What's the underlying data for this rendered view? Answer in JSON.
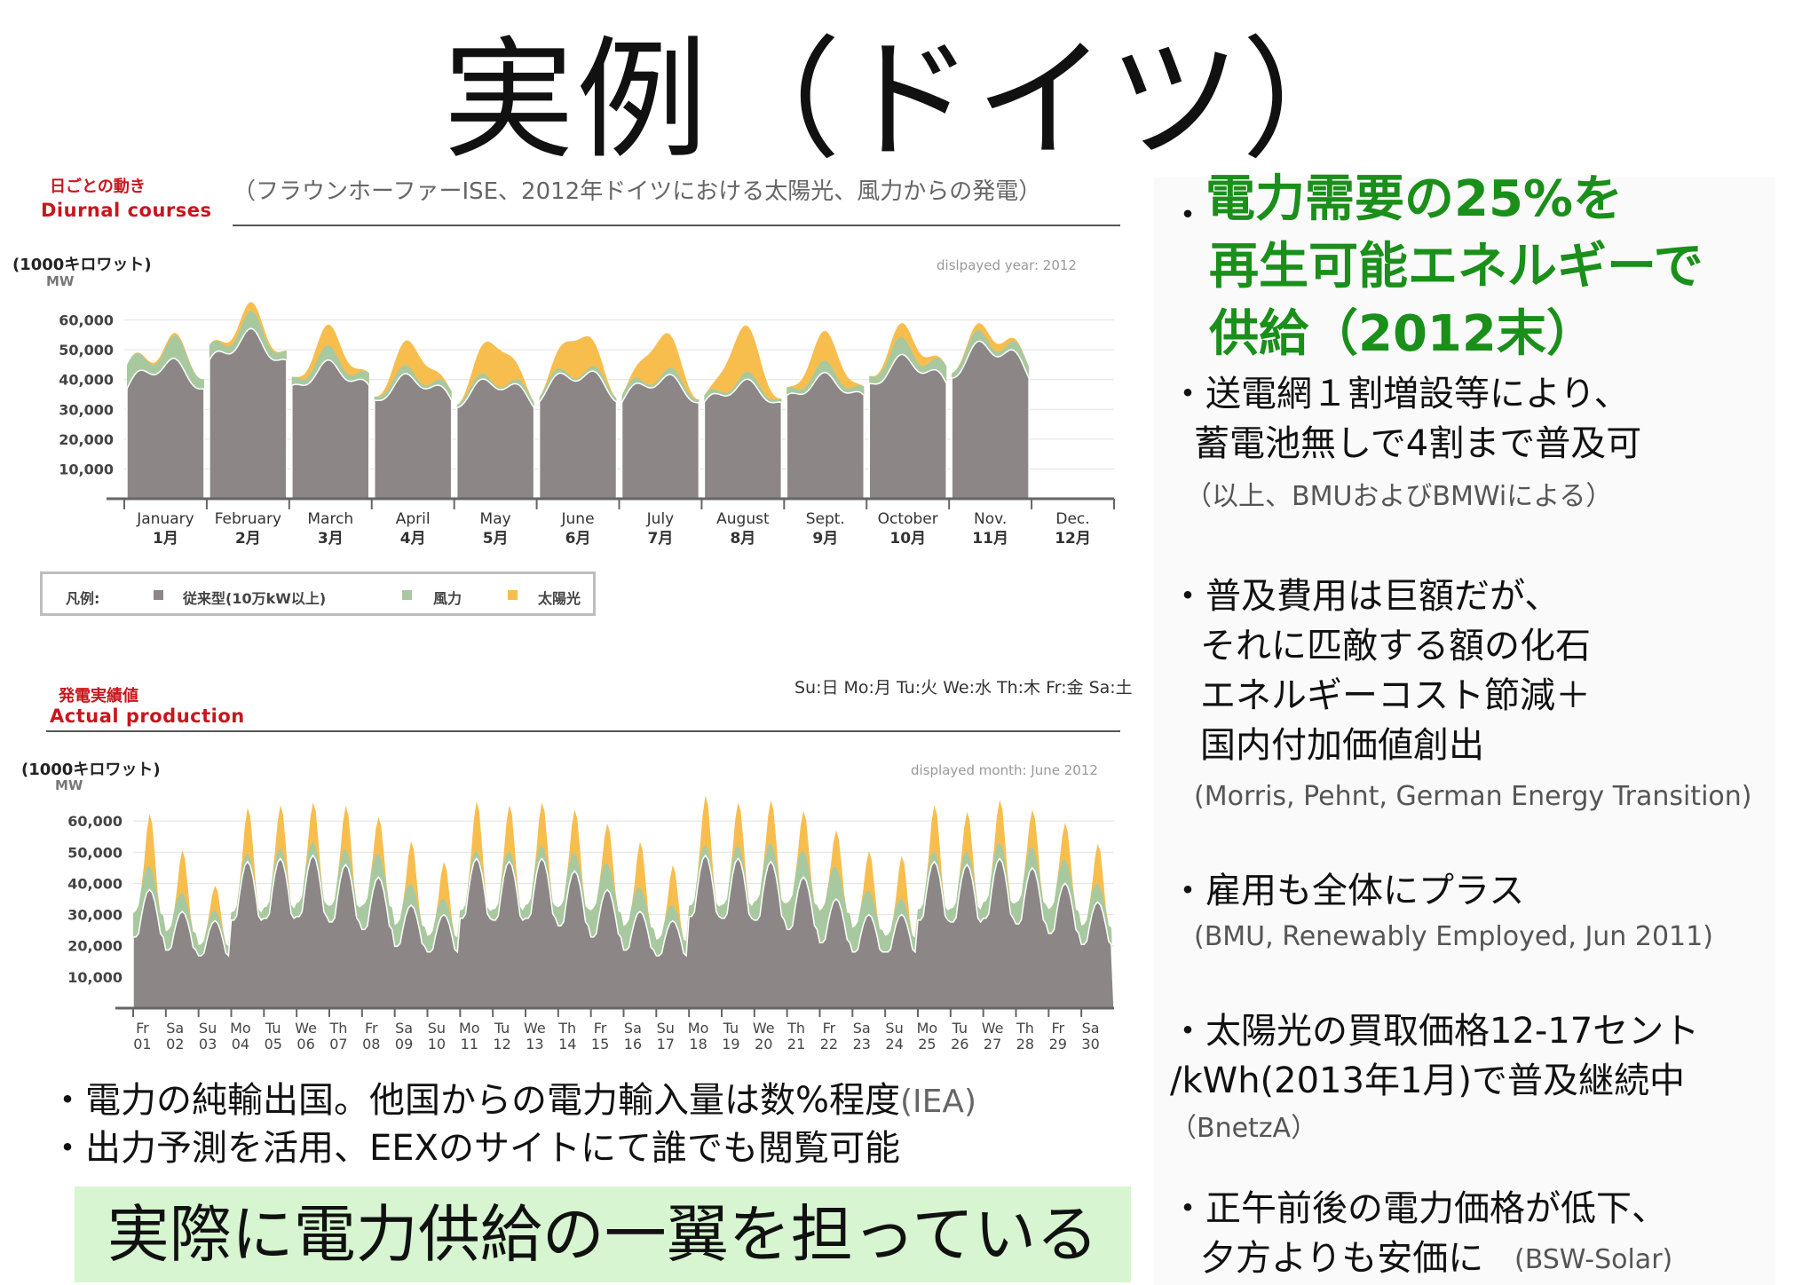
{
  "title": "実例（ドイツ）",
  "top_chart": {
    "label_jp": "日ごとの動き",
    "label_en": "Diurnal courses",
    "caption": "（フラウンホーファーISE、2012年ドイツにおける太陽光、風力からの発電）",
    "unit": "(1000キロワット)",
    "unit_mw": "MW",
    "year_note": "dislpayed year: 2012"
  },
  "legend": {
    "title": "凡例:",
    "items": [
      {
        "label": "従来型(10万kW以上)",
        "color": "#8c8786"
      },
      {
        "label": "風力",
        "color": "#a8c9a0"
      },
      {
        "label": "太陽光",
        "color": "#f7be4e"
      }
    ]
  },
  "bottom_chart": {
    "label_jp": "発電実績値",
    "label_en": "Actual production",
    "day_key": "Su:日 Mo:月 Tu:火 We:水 Th:木 Fr:金 Sa:土",
    "unit": "(1000キロワット)",
    "unit_mw": "MW",
    "month_note": "displayed month: June 2012"
  },
  "chart_data": [
    {
      "type": "area",
      "title": "",
      "ylabel": "MW",
      "ylim": [
        0,
        70000
      ],
      "yticks": [
        "60,000",
        "50,000",
        "40,000",
        "30,000",
        "20,000",
        "10,000"
      ],
      "categories": [
        "January 1月",
        "February 2月",
        "March 3月",
        "April 4月",
        "May 5月",
        "June 6月",
        "July 7月",
        "August 8月",
        "Sept. 9月",
        "October 10月",
        "Nov. 11月",
        "Dec. 12月"
      ],
      "month_en": [
        "January",
        "February",
        "March",
        "April",
        "May",
        "June",
        "July",
        "August",
        "Sept.",
        "October",
        "Nov.",
        "Dec."
      ],
      "month_jp": [
        "1月",
        "2月",
        "3月",
        "4月",
        "5月",
        "6月",
        "7月",
        "8月",
        "9月",
        "10月",
        "11月",
        "12月"
      ],
      "series": [
        {
          "name": "従来型(10万kW以上)",
          "values": [
            45000,
            54000,
            44000,
            40000,
            39000,
            42000,
            40000,
            38000,
            40000,
            46000,
            51000,
            0
          ]
        },
        {
          "name": "風力",
          "values": [
            8000,
            6000,
            5000,
            3000,
            2000,
            2000,
            2500,
            2500,
            4000,
            6000,
            4000,
            0
          ]
        },
        {
          "name": "太陽光",
          "values": [
            1000,
            3000,
            7000,
            9000,
            13000,
            13000,
            13000,
            16000,
            10000,
            5000,
            3000,
            0
          ]
        }
      ]
    },
    {
      "type": "area",
      "title": "",
      "ylabel": "MW",
      "ylim": [
        0,
        70000
      ],
      "yticks": [
        "60,000",
        "50,000",
        "40,000",
        "30,000",
        "20,000",
        "10,000"
      ],
      "x_day": [
        "Fr",
        "Sa",
        "Su",
        "Mo",
        "Tu",
        "We",
        "Th",
        "Fr",
        "Sa",
        "Su",
        "Mo",
        "Tu",
        "We",
        "Th",
        "Fr",
        "Sa",
        "Su",
        "Mo",
        "Tu",
        "We",
        "Th",
        "Fr",
        "Sa",
        "Su",
        "Mo",
        "Tu",
        "We",
        "Th",
        "Fr",
        "Sa"
      ],
      "x_date": [
        "01",
        "02",
        "03",
        "04",
        "05",
        "06",
        "07",
        "08",
        "09",
        "10",
        "11",
        "12",
        "13",
        "14",
        "15",
        "16",
        "17",
        "18",
        "19",
        "20",
        "21",
        "22",
        "23",
        "24",
        "25",
        "26",
        "27",
        "28",
        "29",
        "30"
      ],
      "series": [
        {
          "name": "従来型(10万kW以上)",
          "values": [
            38000,
            31000,
            28000,
            47000,
            48000,
            49000,
            46000,
            42000,
            33000,
            30000,
            48000,
            47000,
            48000,
            44000,
            38000,
            31000,
            28000,
            49000,
            48000,
            47000,
            42000,
            35000,
            30000,
            30000,
            47000,
            46000,
            48000,
            45000,
            40000,
            34000
          ]
        },
        {
          "name": "風力",
          "values": [
            9000,
            7000,
            4000,
            3000,
            4000,
            5000,
            6000,
            9000,
            8000,
            6000,
            3000,
            4000,
            5000,
            7000,
            10000,
            9000,
            6000,
            4000,
            5000,
            7000,
            10000,
            12000,
            9000,
            6000,
            4000,
            5000,
            6000,
            8000,
            9000,
            7000
          ]
        },
        {
          "name": "太陽光",
          "values": [
            17000,
            14000,
            8000,
            15000,
            14000,
            13000,
            14000,
            12000,
            14000,
            12000,
            16000,
            15000,
            14000,
            14000,
            13000,
            15000,
            13000,
            16000,
            14000,
            14000,
            13000,
            12000,
            13000,
            14000,
            15000,
            13000,
            14000,
            12000,
            12000,
            13000
          ]
        }
      ]
    }
  ],
  "bottom_text": {
    "line1": "・電力の純輸出国。他国からの電力輸入量は数%程度",
    "line1_cite": "(IEA)",
    "line2": "・出力予測を活用、EEXのサイトにて誰でも閲覧可能"
  },
  "banner": "実際に電力供給の一翼を担っている",
  "right_panel": {
    "headline_bullet": "・",
    "headline_1": "電力需要の25%を",
    "headline_2": "再生可能エネルギーで",
    "headline_3": "供給（2012末）",
    "p1_l1": "・送電網１割増設等により、",
    "p1_l2": "蓄電池無しで4割まで普及可",
    "p1_cite": "（以上、BMUおよびBMWiによる）",
    "p2_l1": "・普及費用は巨額だが、",
    "p2_l2": "それに匹敵する額の化石",
    "p2_l3": "エネルギーコスト節減＋",
    "p2_l4": "国内付加価値創出",
    "p2_cite": "(Morris, Pehnt, German Energy Transition)",
    "p3_l1": "・雇用も全体にプラス",
    "p3_cite": "(BMU, Renewably Employed, Jun 2011)",
    "p4_l1": "・太陽光の買取価格12-17セント",
    "p4_l2": "/kWh(2013年1月)で普及継続中",
    "p4_cite": "（BnetzA）",
    "p5_l1": "・正午前後の電力価格が低下、",
    "p5_l2": "夕方よりも安価に",
    "p5_cite": "(BSW-Solar)"
  }
}
